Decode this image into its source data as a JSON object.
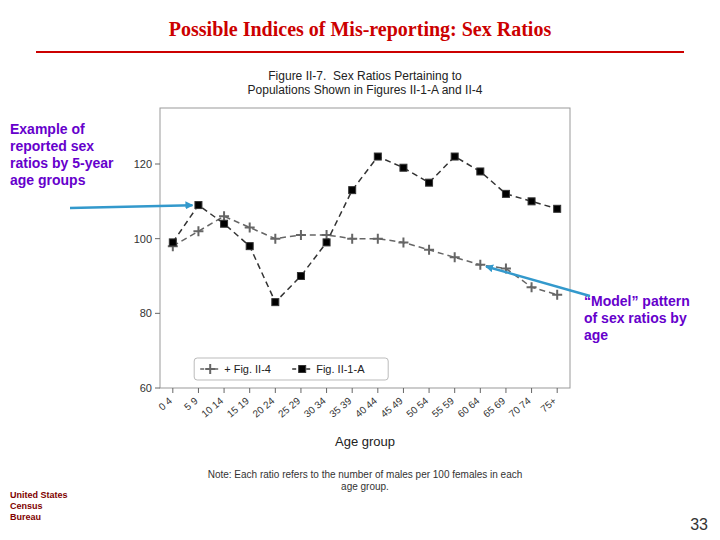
{
  "chart_data": {
    "type": "line",
    "title": "Possible Indices of Mis-reporting: Sex Ratios",
    "subtitle": "Figure II-7.  Sex Ratios Pertaining to\nPopulations Shown in Figures II-1-A and II-4",
    "x_label": "Age group",
    "categories": [
      "0 4",
      "5 9",
      "10 14",
      "15 19",
      "20 24",
      "25 29",
      "30 34",
      "35 39",
      "40 44",
      "45 49",
      "50 54",
      "55 59",
      "60 64",
      "65 69",
      "70 74",
      "75+"
    ],
    "series": [
      {
        "name": "+ Fig. II-4",
        "color": "#666666",
        "marker": "plus",
        "line_style": "dashed",
        "values": [
          98,
          102,
          106,
          103,
          100,
          101,
          101,
          100,
          100,
          99,
          97,
          95,
          93,
          92,
          87,
          85
        ]
      },
      {
        "name": "Fig. II-1-A",
        "color": "#333333",
        "marker": "square",
        "line_style": "dashed",
        "values": [
          99,
          109,
          104,
          98,
          83,
          90,
          99,
          113,
          122,
          119,
          115,
          122,
          118,
          112,
          110,
          108
        ]
      }
    ],
    "ylim": [
      60,
      135
    ],
    "yticks": [
      60,
      80,
      100,
      120
    ],
    "grid": false,
    "legend": "lower center",
    "annotations": [
      "Example of\nreported sex\nratios by 5-year\nage groups",
      "“Model” pattern\nof sex ratios by\nage",
      "Note: Each ratio refers to the number of males per 100 females in each\nage group.",
      "33",
      "United States\nCensus\nBureau"
    ]
  }
}
